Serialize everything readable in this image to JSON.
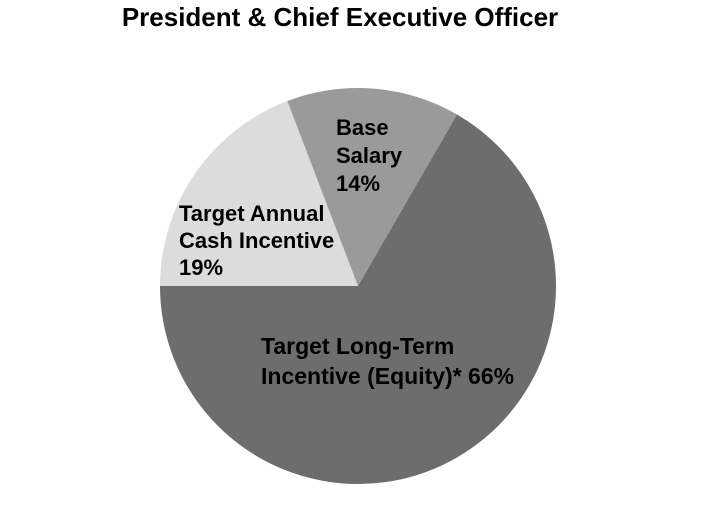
{
  "chart_data": {
    "type": "pie",
    "title": "President & Chief Executive Officer",
    "legend_position": "none",
    "center": [
      358,
      286
    ],
    "radius": 198,
    "start_angle_compass": 270,
    "direction": "clockwise",
    "background_color": "#ffffff",
    "text_color": "#000000",
    "slices": [
      {
        "id": "target-annual-cash-incentive",
        "label": "Target Annual Cash Incentive",
        "value": 19,
        "display": "19%",
        "color": "#dcdcdc"
      },
      {
        "id": "base-salary",
        "label": "Base Salary",
        "value": 14,
        "display": "14%",
        "color": "#9a9a9a"
      },
      {
        "id": "target-long-term-incentive-equity",
        "label": "Target Long-Term Incentive (Equity)*",
        "value": 66,
        "display": "66%",
        "color": "#6d6d6d"
      }
    ]
  },
  "labels": {
    "base_salary": {
      "lines": [
        "Base",
        "Salary",
        "14%"
      ]
    },
    "cash_incentive": {
      "lines": [
        "Target Annual",
        "Cash Incentive",
        "19%"
      ]
    },
    "long_term": {
      "lines": [
        "Target Long-Term",
        "Incentive (Equity)* 66%"
      ]
    }
  }
}
